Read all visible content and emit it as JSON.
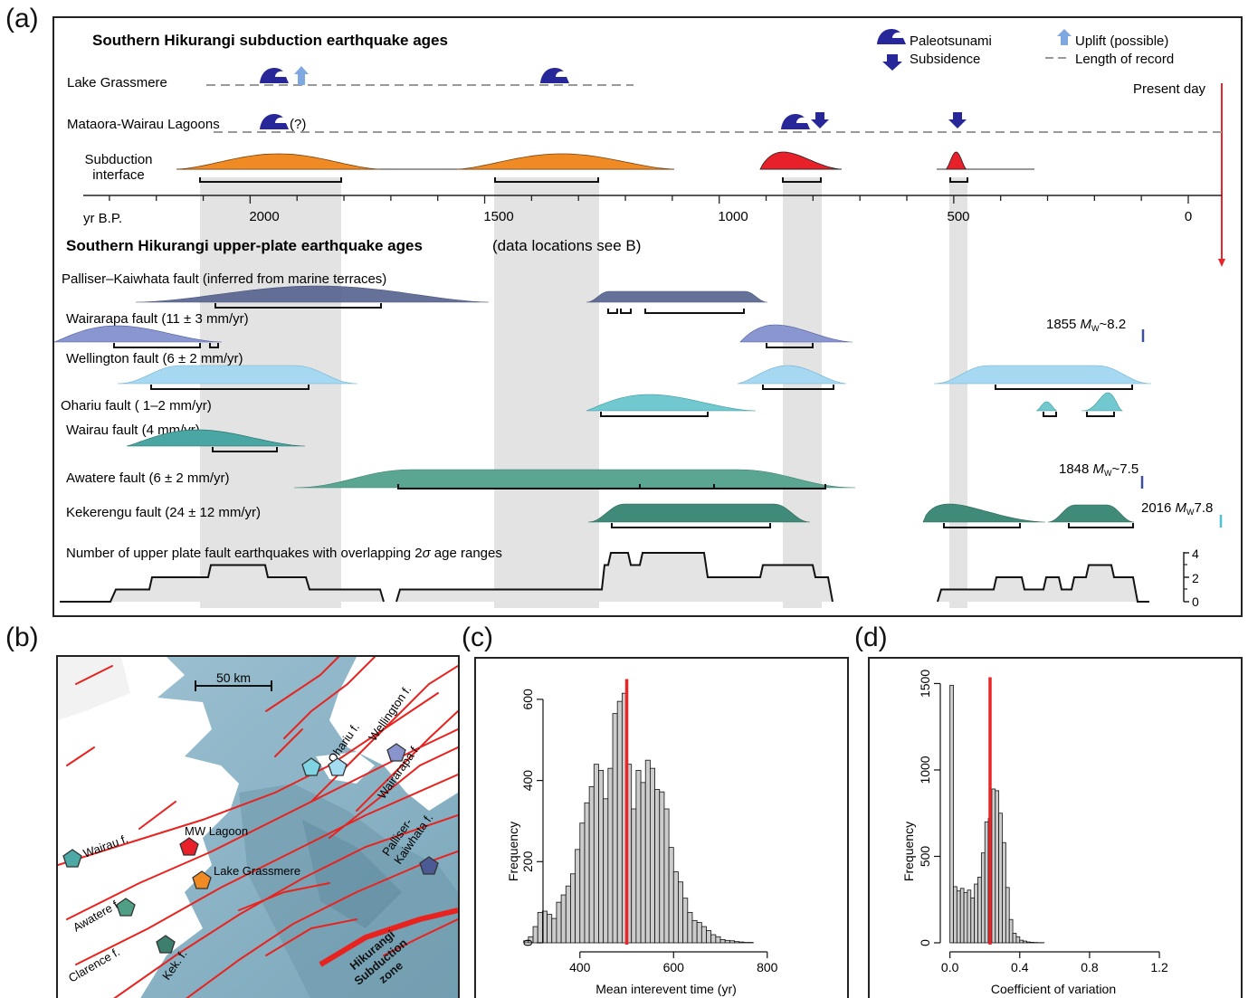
{
  "panels": {
    "a": "(a)",
    "b": "(b)",
    "c": "(c)",
    "d": "(d)"
  },
  "colors": {
    "paleotsunami": "#27279a",
    "uplift": "#7fa8e0",
    "record_dash": "#9a9a9a",
    "present_day": "#e8262a",
    "shade": "#d6d6d6",
    "hist_bar": "#cccccc",
    "interface_orange": "#f08a24",
    "interface_red": "#e8202a"
  },
  "panel_a": {
    "title_top": "Southern Hikurangi subduction earthquake ages",
    "title_bottom_bold": "Southern Hikurangi upper-plate earthquake ages",
    "title_bottom_note": "(data locations see B)",
    "legend": {
      "paleotsunami": "Paleotsunami",
      "subsidence": "Subsidence",
      "uplift": "Uplift (possible)",
      "record": "Length of record"
    },
    "present_day": "Present day",
    "axis_label": "yr B.P.",
    "axis_ticks": [
      "2000",
      "1500",
      "1000",
      "500",
      "0"
    ],
    "rows": {
      "grassmere": "Lake Grassmere",
      "mataora": "Mataora-Wairau Lagoons",
      "mataora_note": "(?)",
      "interface_1": "Subduction",
      "interface_2": "interface"
    },
    "faults": {
      "palliser": "Palliser–Kaiwhata fault (inferred from marine terraces)",
      "wairarapa": "Wairarapa fault (11 ± 3 mm/yr)",
      "wellington": "Wellington fault (6 ± 2 mm/yr)",
      "ohariu": "Ohariu fault ( 1–2 mm/yr)",
      "wairau": "Wairau fault (4 mm/yr)",
      "awatere": "Awatere fault (6 ± 2 mm/yr)",
      "kekerengu": "Kekerengu fault (24 ± 12 mm/yr)"
    },
    "events": {
      "e1855_year": "1855",
      "e1855_m": "M",
      "e1855_sub": "W",
      "e1855_val": "~8.2",
      "e1848_year": "1848",
      "e1848_m": "M",
      "e1848_sub": "W",
      "e1848_val": "~7.5",
      "e2016_year": "2016",
      "e2016_m": "M",
      "e2016_sub": "W",
      "e2016_val": "7.8"
    },
    "count_label_pre": "Number of upper plate fault earthquakes with overlapping 2",
    "count_label_sigma": "σ",
    "count_label_post": " age ranges",
    "count_ticks": [
      "4",
      "2",
      "0"
    ]
  },
  "panel_b": {
    "scale": "50 km",
    "labels": {
      "ohariu": "Ohariu f.",
      "wellington": "Wellington f.",
      "wairarapa": "Wairarapa f.",
      "wairau": "Wairau f.",
      "mw_lagoon": "MW Lagoon",
      "grassmere": "Lake Grassmere",
      "palliser_1": "Palliser-",
      "palliser_2": "Kaiwhata f.",
      "awatere": "Awatere f.",
      "clarence": "Clarence f.",
      "kek": "Kek. f.",
      "hik_1": "Hikurangi",
      "hik_2": "Subduction",
      "hik_3": "zone"
    }
  },
  "chart_data": [
    {
      "type": "histogram",
      "panel": "c",
      "xlabel": "Mean interevent time (yr)",
      "ylabel": "Frequency",
      "xlim": [
        240,
        870
      ],
      "ylim": [
        0,
        660
      ],
      "x_ticks": [
        400,
        600,
        800
      ],
      "y_ticks": [
        0,
        200,
        400,
        600
      ],
      "bin_width": 10,
      "bin_start": 280,
      "values": [
        5,
        15,
        40,
        75,
        78,
        70,
        60,
        100,
        118,
        140,
        170,
        230,
        295,
        345,
        385,
        440,
        425,
        355,
        430,
        565,
        595,
        615,
        440,
        330,
        425,
        395,
        450,
        430,
        378,
        372,
        330,
        235,
        175,
        150,
        110,
        75,
        55,
        50,
        40,
        30,
        20,
        15,
        8,
        6,
        5,
        3,
        2,
        1,
        1
      ],
      "marker": 500
    },
    {
      "type": "histogram",
      "panel": "d",
      "xlabel": "Coefficient of variation",
      "ylabel": "Frequency",
      "xlim": [
        -0.05,
        1.35
      ],
      "ylim": [
        0,
        1560
      ],
      "x_ticks": [
        0.0,
        0.4,
        0.8,
        1.2
      ],
      "y_ticks": [
        0,
        500,
        1000,
        1500
      ],
      "bin_width": 0.02,
      "bin_start": 0.0,
      "values": [
        1490,
        325,
        300,
        315,
        290,
        305,
        260,
        340,
        380,
        520,
        700,
        720,
        890,
        880,
        750,
        580,
        320,
        135,
        55,
        35,
        15,
        10,
        5,
        3,
        2,
        1,
        1
      ],
      "marker": 0.23
    }
  ]
}
